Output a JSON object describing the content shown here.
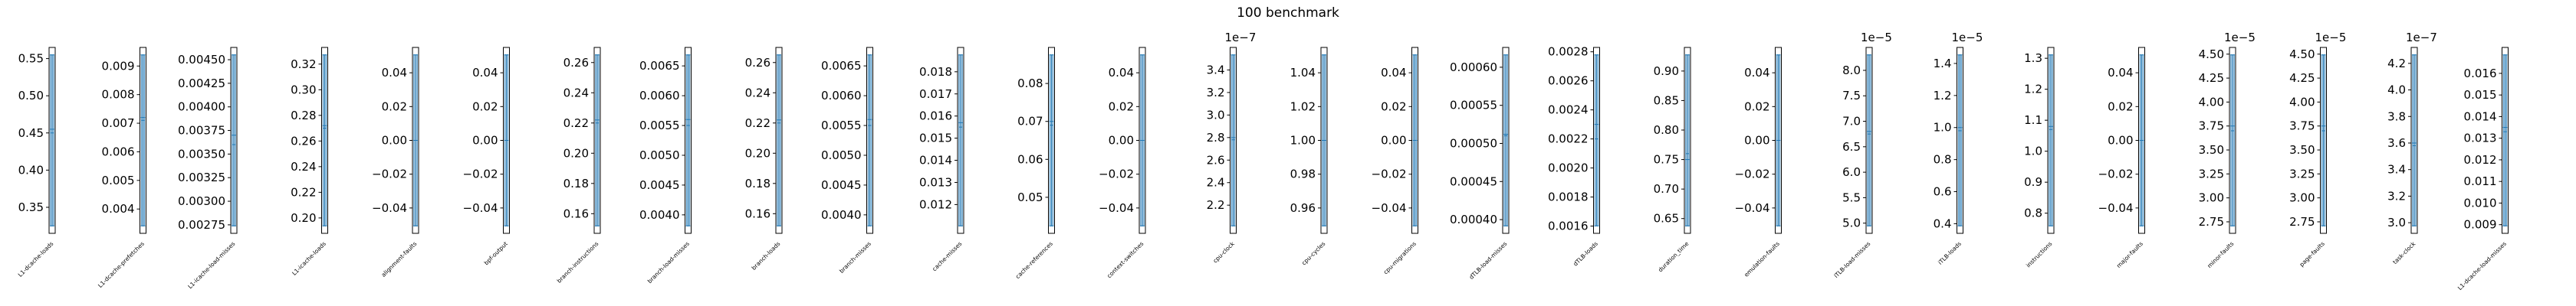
{
  "chart_data": {
    "type": "violin",
    "title": "100 benchmark",
    "accent_color": "#1f77b4",
    "panels": [
      {
        "label": "L1-dcache-loads",
        "ylim": [
          0.315,
          0.565
        ],
        "ticks": [
          "0.35",
          "0.40",
          "0.45",
          "0.50",
          "0.55"
        ],
        "tick_values": [
          0.35,
          0.4,
          0.45,
          0.5,
          0.55
        ],
        "median": 0.455,
        "mean": 0.45
      },
      {
        "label": "L1-dcache-prefetches",
        "ylim": [
          0.00315,
          0.00965
        ],
        "ticks": [
          "0.004",
          "0.005",
          "0.006",
          "0.007",
          "0.008",
          "0.009"
        ],
        "tick_values": [
          0.004,
          0.005,
          0.006,
          0.007,
          0.008,
          0.009
        ],
        "median": 0.0072,
        "mean": 0.0071
      },
      {
        "label": "L1-icache-load-misses",
        "ylim": [
          0.00266,
          0.00463
        ],
        "ticks": [
          "0.00275",
          "0.00300",
          "0.00325",
          "0.00350",
          "0.00375",
          "0.00400",
          "0.00425",
          "0.00450"
        ],
        "tick_values": [
          0.00275,
          0.003,
          0.00325,
          0.0035,
          0.00375,
          0.004,
          0.00425,
          0.0045
        ],
        "median": 0.0037,
        "mean": 0.0036
      },
      {
        "label": "L1-icache-loads",
        "ylim": [
          0.188,
          0.333
        ],
        "ticks": [
          "0.20",
          "0.22",
          "0.24",
          "0.26",
          "0.28",
          "0.30",
          "0.32"
        ],
        "tick_values": [
          0.2,
          0.22,
          0.24,
          0.26,
          0.28,
          0.3,
          0.32
        ],
        "median": 0.272,
        "mean": 0.27
      },
      {
        "label": "alignment-faults",
        "ylim": [
          -0.055,
          0.055
        ],
        "ticks": [
          "−0.04",
          "−0.02",
          "0.00",
          "0.02",
          "0.04"
        ],
        "tick_values": [
          -0.04,
          -0.02,
          0.0,
          0.02,
          0.04
        ],
        "median": 0.0,
        "mean": 0.0
      },
      {
        "label": "bpf-output",
        "ylim": [
          -0.055,
          0.055
        ],
        "ticks": [
          "−0.04",
          "−0.02",
          "0.00",
          "0.02",
          "0.04"
        ],
        "tick_values": [
          -0.04,
          -0.02,
          0.0,
          0.02,
          0.04
        ],
        "median": 0.0,
        "mean": 0.0
      },
      {
        "label": "branch-instructions",
        "ylim": [
          0.147,
          0.27
        ],
        "ticks": [
          "0.16",
          "0.18",
          "0.20",
          "0.22",
          "0.24",
          "0.26"
        ],
        "tick_values": [
          0.16,
          0.18,
          0.2,
          0.22,
          0.24,
          0.26
        ],
        "median": 0.222,
        "mean": 0.22
      },
      {
        "label": "branch-load-misses",
        "ylim": [
          0.00369,
          0.00681
        ],
        "ticks": [
          "0.0040",
          "0.0045",
          "0.0050",
          "0.0055",
          "0.0060",
          "0.0065"
        ],
        "tick_values": [
          0.004,
          0.0045,
          0.005,
          0.0055,
          0.006,
          0.0065
        ],
        "median": 0.0056,
        "mean": 0.0055
      },
      {
        "label": "branch-loads",
        "ylim": [
          0.147,
          0.27
        ],
        "ticks": [
          "0.16",
          "0.18",
          "0.20",
          "0.22",
          "0.24",
          "0.26"
        ],
        "tick_values": [
          0.16,
          0.18,
          0.2,
          0.22,
          0.24,
          0.26
        ],
        "median": 0.222,
        "mean": 0.22
      },
      {
        "label": "branch-misses",
        "ylim": [
          0.00369,
          0.00681
        ],
        "ticks": [
          "0.0040",
          "0.0045",
          "0.0050",
          "0.0055",
          "0.0060",
          "0.0065"
        ],
        "tick_values": [
          0.004,
          0.0045,
          0.005,
          0.0055,
          0.006,
          0.0065
        ],
        "median": 0.0056,
        "mean": 0.0055
      },
      {
        "label": "cache-misses",
        "ylim": [
          0.0107,
          0.0191
        ],
        "ticks": [
          "0.012",
          "0.013",
          "0.014",
          "0.015",
          "0.016",
          "0.017",
          "0.018"
        ],
        "tick_values": [
          0.012,
          0.013,
          0.014,
          0.015,
          0.016,
          0.017,
          0.018
        ],
        "median": 0.0157,
        "mean": 0.0155
      },
      {
        "label": "cache-references",
        "ylim": [
          0.0405,
          0.0895
        ],
        "ticks": [
          "0.05",
          "0.06",
          "0.07",
          "0.08"
        ],
        "tick_values": [
          0.05,
          0.06,
          0.07,
          0.08
        ],
        "median": 0.07,
        "mean": 0.069
      },
      {
        "label": "context-switches",
        "ylim": [
          -0.055,
          0.055
        ],
        "ticks": [
          "−0.04",
          "−0.02",
          "0.00",
          "0.02",
          "0.04"
        ],
        "tick_values": [
          -0.04,
          -0.02,
          0.0,
          0.02,
          0.04
        ],
        "median": 0.0,
        "mean": 0.0
      },
      {
        "label": "cpu-clock",
        "ylim": [
          1.95,
          3.6
        ],
        "ticks": [
          "2.2",
          "2.4",
          "2.6",
          "2.8",
          "3.0",
          "3.2",
          "3.4"
        ],
        "tick_values": [
          2.2,
          2.4,
          2.6,
          2.8,
          3.0,
          3.2,
          3.4
        ],
        "multiplier": "1e−7",
        "median": 2.8,
        "mean": 2.78
      },
      {
        "label": "cpu-cycles",
        "ylim": [
          0.945,
          1.055
        ],
        "ticks": [
          "0.96",
          "0.98",
          "1.00",
          "1.02",
          "1.04"
        ],
        "tick_values": [
          0.96,
          0.98,
          1.0,
          1.02,
          1.04
        ],
        "median": 1.0,
        "mean": 1.0
      },
      {
        "label": "cpu-migrations",
        "ylim": [
          -0.055,
          0.055
        ],
        "ticks": [
          "−0.04",
          "−0.02",
          "0.00",
          "0.02",
          "0.04"
        ],
        "tick_values": [
          -0.04,
          -0.02,
          0.0,
          0.02,
          0.04
        ],
        "median": 0.0,
        "mean": 0.0
      },
      {
        "label": "dTLB-load-misses",
        "ylim": [
          0.000382,
          0.000626
        ],
        "ticks": [
          "0.00040",
          "0.00045",
          "0.00050",
          "0.00055",
          "0.00060"
        ],
        "tick_values": [
          0.0004,
          0.00045,
          0.0005,
          0.00055,
          0.0006
        ],
        "median": 0.000512,
        "mean": 0.00051
      },
      {
        "label": "dTLB-loads",
        "ylim": [
          0.00155,
          0.00283
        ],
        "ticks": [
          "0.0016",
          "0.0018",
          "0.0020",
          "0.0022",
          "0.0024",
          "0.0026",
          "0.0028"
        ],
        "tick_values": [
          0.0016,
          0.0018,
          0.002,
          0.0022,
          0.0024,
          0.0026,
          0.0028
        ],
        "median": 0.0023,
        "mean": 0.0022
      },
      {
        "label": "duration_time",
        "ylim": [
          0.625,
          0.94
        ],
        "ticks": [
          "0.65",
          "0.70",
          "0.75",
          "0.80",
          "0.85",
          "0.90"
        ],
        "tick_values": [
          0.65,
          0.7,
          0.75,
          0.8,
          0.85,
          0.9
        ],
        "median": 0.75,
        "mean": 0.76
      },
      {
        "label": "emulation-faults",
        "ylim": [
          -0.055,
          0.055
        ],
        "ticks": [
          "−0.04",
          "−0.02",
          "0.00",
          "0.02",
          "0.04"
        ],
        "tick_values": [
          -0.04,
          -0.02,
          0.0,
          0.02,
          0.04
        ],
        "median": 0.0,
        "mean": 0.0
      },
      {
        "label": "iTLB-load-misses",
        "ylim": [
          4.8,
          8.45
        ],
        "ticks": [
          "5.0",
          "5.5",
          "6.0",
          "6.5",
          "7.0",
          "7.5",
          "8.0"
        ],
        "tick_values": [
          5.0,
          5.5,
          6.0,
          6.5,
          7.0,
          7.5,
          8.0
        ],
        "multiplier": "1e−5",
        "median": 6.8,
        "mean": 6.75
      },
      {
        "label": "iTLB-loads",
        "ylim": [
          0.34,
          1.5
        ],
        "ticks": [
          "0.4",
          "0.6",
          "0.8",
          "1.0",
          "1.2",
          "1.4"
        ],
        "tick_values": [
          0.4,
          0.6,
          0.8,
          1.0,
          1.2,
          1.4
        ],
        "multiplier": "1e−5",
        "median": 1.0,
        "mean": 0.98
      },
      {
        "label": "instructions",
        "ylim": [
          0.735,
          1.335
        ],
        "ticks": [
          "0.8",
          "0.9",
          "1.0",
          "1.1",
          "1.2",
          "1.3"
        ],
        "tick_values": [
          0.8,
          0.9,
          1.0,
          1.1,
          1.2,
          1.3
        ],
        "median": 1.08,
        "mean": 1.07
      },
      {
        "label": "major-faults",
        "ylim": [
          -0.055,
          0.055
        ],
        "ticks": [
          "−0.04",
          "−0.02",
          "0.00",
          "0.02",
          "0.04"
        ],
        "tick_values": [
          -0.04,
          -0.02,
          0.0,
          0.02,
          0.04
        ],
        "median": 0.0,
        "mean": 0.0
      },
      {
        "label": "minor-faults",
        "ylim": [
          2.63,
          4.57
        ],
        "ticks": [
          "2.75",
          "3.00",
          "3.25",
          "3.50",
          "3.75",
          "4.00",
          "4.25",
          "4.50"
        ],
        "tick_values": [
          2.75,
          3.0,
          3.25,
          3.5,
          3.75,
          4.0,
          4.25,
          4.5
        ],
        "multiplier": "1e−5",
        "median": 3.75,
        "mean": 3.7
      },
      {
        "label": "page-faults",
        "ylim": [
          2.63,
          4.57
        ],
        "ticks": [
          "2.75",
          "3.00",
          "3.25",
          "3.50",
          "3.75",
          "4.00",
          "4.25",
          "4.50"
        ],
        "tick_values": [
          2.75,
          3.0,
          3.25,
          3.5,
          3.75,
          4.0,
          4.25,
          4.5
        ],
        "multiplier": "1e−5",
        "median": 3.75,
        "mean": 3.7
      },
      {
        "label": "task-clock",
        "ylim": [
          2.92,
          4.32
        ],
        "ticks": [
          "3.0",
          "3.2",
          "3.4",
          "3.6",
          "3.8",
          "4.0",
          "4.2"
        ],
        "tick_values": [
          3.0,
          3.2,
          3.4,
          3.6,
          3.8,
          4.0,
          4.2
        ],
        "multiplier": "1e−7",
        "median": 3.6,
        "mean": 3.58
      },
      {
        "label": "L1-dcache-load-misses",
        "ylim": [
          0.0086,
          0.0172
        ],
        "ticks": [
          "0.010",
          "0.011",
          "0.012",
          "0.013",
          "0.014",
          "0.015",
          "0.016"
        ],
        "tick_values": [
          0.01,
          0.011,
          0.012,
          0.013,
          0.014,
          0.015,
          0.016
        ],
        "extra_ticks": [
          "0.009"
        ],
        "extra_tick_values": [
          0.009
        ],
        "median": 0.0135,
        "mean": 0.0133
      }
    ]
  }
}
